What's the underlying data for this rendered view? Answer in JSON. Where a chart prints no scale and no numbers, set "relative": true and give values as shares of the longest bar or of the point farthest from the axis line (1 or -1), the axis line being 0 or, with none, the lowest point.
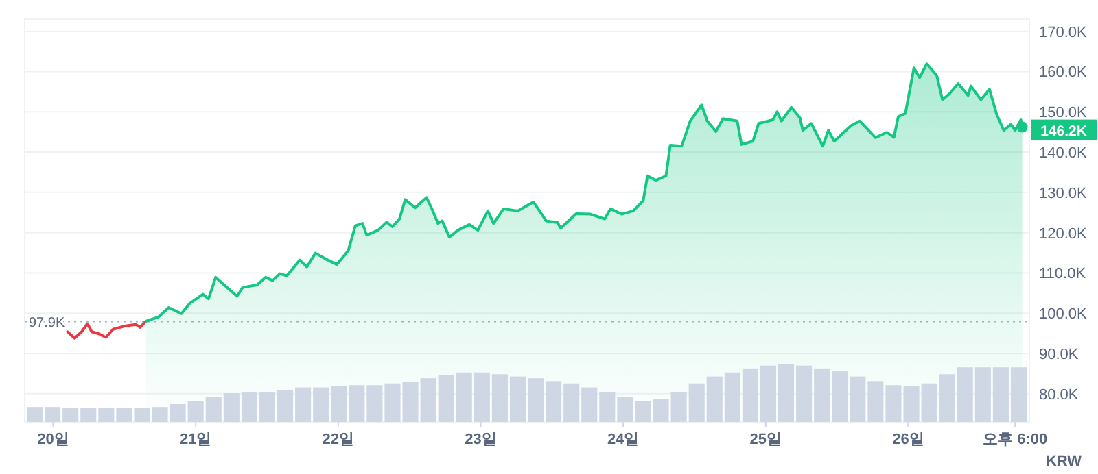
{
  "chart_data": [
    {
      "type": "line",
      "ylabel": "KRW",
      "xlim": [
        19.8,
        26.85
      ],
      "ylim": [
        73,
        173
      ],
      "xticks": [
        {
          "value": 20,
          "label": "20일"
        },
        {
          "value": 21,
          "label": "21일"
        },
        {
          "value": 22,
          "label": "22일"
        },
        {
          "value": 23,
          "label": "23일"
        },
        {
          "value": 24,
          "label": "24일"
        },
        {
          "value": 25,
          "label": "25일"
        },
        {
          "value": 26,
          "label": "26일"
        },
        {
          "value": 26.75,
          "label": "오후 6:00"
        }
      ],
      "yticks": [
        {
          "value": 80,
          "label": "80.0K"
        },
        {
          "value": 90,
          "label": "90.0K"
        },
        {
          "value": 100,
          "label": "100.0K"
        },
        {
          "value": 110,
          "label": "110.0K"
        },
        {
          "value": 120,
          "label": "120.0K"
        },
        {
          "value": 130,
          "label": "130.0K"
        },
        {
          "value": 140,
          "label": "140.0K"
        },
        {
          "value": 150,
          "label": "150.0K"
        },
        {
          "value": 160,
          "label": "160.0K"
        },
        {
          "value": 170,
          "label": "170.0K"
        }
      ],
      "grid": "y",
      "marker": "none",
      "line_style": "solid",
      "series": [
        {
          "type": "line",
          "color": "#ea3943",
          "x": [
            20.1,
            20.15,
            20.2,
            20.24,
            20.27,
            20.32,
            20.37,
            20.42,
            20.5,
            20.58,
            20.61,
            20.65
          ],
          "values": [
            95.4,
            93.8,
            95.4,
            97.4,
            95.4,
            94.9,
            94.0,
            96.0,
            96.8,
            97.2,
            96.5,
            98.0
          ]
        },
        {
          "type": "area",
          "color": "#16c784",
          "x": [
            20.65,
            20.74,
            20.81,
            20.9,
            20.96,
            21.05,
            21.09,
            21.14,
            21.2,
            21.29,
            21.33,
            21.43,
            21.49,
            21.54,
            21.59,
            21.64,
            21.73,
            21.78,
            21.84,
            21.91,
            21.99,
            22.07,
            22.12,
            22.17,
            22.2,
            22.28,
            22.34,
            22.38,
            22.43,
            22.47,
            22.54,
            22.62,
            22.66,
            22.7,
            22.73,
            22.78,
            22.84,
            22.92,
            22.98,
            23.05,
            23.09,
            23.16,
            23.26,
            23.37,
            23.46,
            23.54,
            23.56,
            23.67,
            23.77,
            23.87,
            23.91,
            23.99,
            24.07,
            24.14,
            24.17,
            24.23,
            24.3,
            24.33,
            24.41,
            24.47,
            24.55,
            24.59,
            24.65,
            24.7,
            24.8,
            24.83,
            24.91,
            24.95,
            25.05,
            25.08,
            25.11,
            25.18,
            25.24,
            25.26,
            25.32,
            25.4,
            25.44,
            25.48,
            25.6,
            25.66,
            25.77,
            25.85,
            25.9,
            25.93,
            25.98,
            26.04,
            26.08,
            26.13,
            26.2,
            26.24,
            26.29,
            26.35,
            26.42,
            26.44,
            26.51,
            26.57,
            26.62,
            26.67,
            26.72,
            26.75,
            26.79,
            26.8
          ],
          "values": [
            98.0,
            99.1,
            101.4,
            99.9,
            102.5,
            104.7,
            103.6,
            108.9,
            107.0,
            104.2,
            106.4,
            107.0,
            108.9,
            108.1,
            109.8,
            109.3,
            113.2,
            111.5,
            114.9,
            113.5,
            112.1,
            115.5,
            121.7,
            122.3,
            119.4,
            120.6,
            122.6,
            121.5,
            123.4,
            128.2,
            126.2,
            128.7,
            125.7,
            122.3,
            122.9,
            118.9,
            120.6,
            122.0,
            120.6,
            125.4,
            122.3,
            125.9,
            125.4,
            127.6,
            122.9,
            122.5,
            121.1,
            124.7,
            124.6,
            123.4,
            125.9,
            124.6,
            125.4,
            127.9,
            134.1,
            133.0,
            134.1,
            141.7,
            141.5,
            147.7,
            151.7,
            147.7,
            145.1,
            148.3,
            147.7,
            141.9,
            142.7,
            147.1,
            148.0,
            150.0,
            147.7,
            151.1,
            148.5,
            145.4,
            147.1,
            141.5,
            145.4,
            142.7,
            146.6,
            147.7,
            143.6,
            144.9,
            143.7,
            148.8,
            149.6,
            160.9,
            158.5,
            161.9,
            159.0,
            153.0,
            154.5,
            157.0,
            154.1,
            156.4,
            153.0,
            155.6,
            149.4,
            145.4,
            146.9,
            145.4,
            148.0,
            146.2
          ]
        }
      ],
      "ref_lines": [
        {
          "axis": "y",
          "value": 97.9,
          "label": "97.9K",
          "color": "#a6b0c3",
          "line_style": "dotted"
        }
      ],
      "annotations": [
        {
          "text": "146.2K",
          "x": 26.8,
          "y": 146.2
        }
      ]
    },
    {
      "type": "bar",
      "relative": true,
      "color": "#cfd6e4",
      "categories": [
        null,
        null,
        null,
        null,
        null,
        null,
        null,
        null,
        null,
        null,
        null,
        null,
        null,
        null,
        null,
        null,
        null,
        null,
        null,
        null,
        null,
        null,
        null,
        null,
        null,
        null,
        null,
        null,
        null,
        null,
        null,
        null,
        null,
        null,
        null,
        null,
        null,
        null,
        null,
        null,
        null,
        null,
        null,
        null,
        null,
        null,
        null,
        null,
        null,
        null,
        null,
        null,
        null,
        null,
        null,
        null
      ],
      "values": [
        0.26,
        0.26,
        0.24,
        0.24,
        0.24,
        0.24,
        0.24,
        0.26,
        0.31,
        0.36,
        0.43,
        0.5,
        0.52,
        0.52,
        0.55,
        0.6,
        0.6,
        0.62,
        0.64,
        0.64,
        0.67,
        0.69,
        0.76,
        0.81,
        0.86,
        0.86,
        0.83,
        0.79,
        0.76,
        0.71,
        0.67,
        0.6,
        0.52,
        0.43,
        0.36,
        0.4,
        0.52,
        0.67,
        0.79,
        0.86,
        0.93,
        0.98,
        1,
        0.98,
        0.93,
        0.88,
        0.79,
        0.71,
        0.64,
        0.62,
        0.67,
        0.83,
        0.95,
        0.95,
        0.95,
        0.95
      ]
    }
  ]
}
